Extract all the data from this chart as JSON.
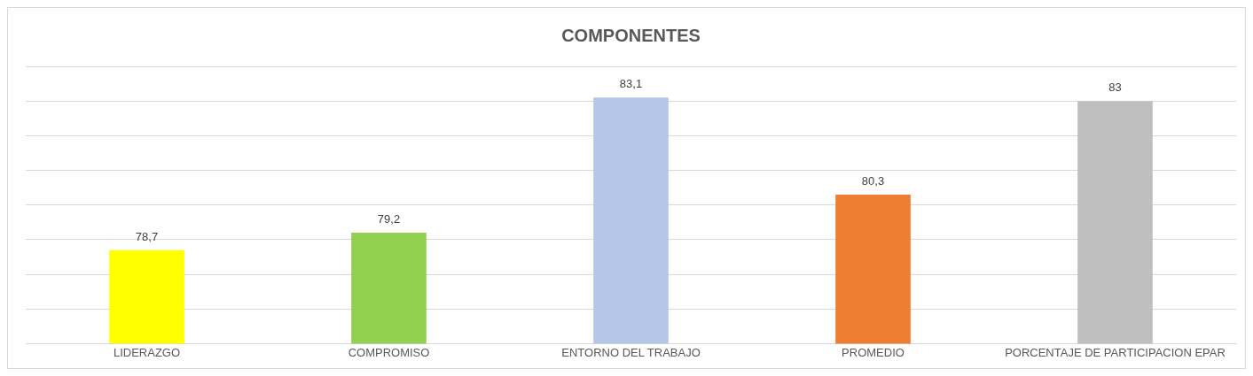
{
  "chart_data": {
    "type": "bar",
    "title": "COMPONENTES",
    "categories": [
      "LIDERAZGO",
      "COMPROMISO",
      "ENTORNO DEL TRABAJO",
      "PROMEDIO",
      "PORCENTAJE DE PARTICIPACION EPAR"
    ],
    "values": [
      78.7,
      79.2,
      83.1,
      80.3,
      83
    ],
    "value_labels": [
      "78,7",
      "79,2",
      "83,1",
      "80,3",
      "83"
    ],
    "colors": [
      "#ffff00",
      "#92d050",
      "#b4c7e7",
      "#ed7d31",
      "#bfbfbf"
    ],
    "ylim": [
      76,
      84
    ],
    "yticks": [
      76,
      77,
      78,
      79,
      80,
      81,
      82,
      83,
      84
    ],
    "tick_labels": "x",
    "grid": "y",
    "legend": false
  }
}
